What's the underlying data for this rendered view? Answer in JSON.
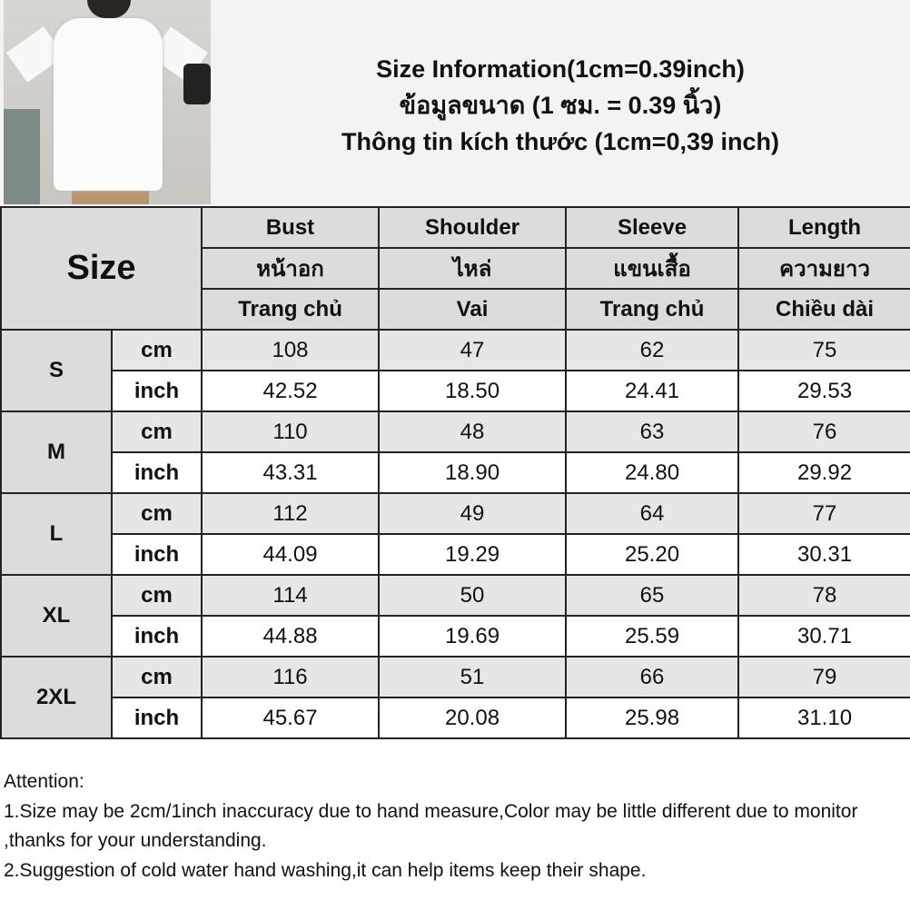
{
  "title_lines": [
    "Size Information(1cm=0.39inch)",
    "ข้อมูลขนาด (1 ซม. = 0.39 นิ้ว)",
    "Thông tin kích thước (1cm=0,39 inch)"
  ],
  "size_header": "Size",
  "columns": [
    {
      "en": "Bust",
      "th": "หน้าอก",
      "vi": "Trang chủ"
    },
    {
      "en": "Shoulder",
      "th": "ไหล่",
      "vi": "Vai"
    },
    {
      "en": "Sleeve",
      "th": "แขนเสื้อ",
      "vi": "Trang chủ"
    },
    {
      "en": "Length",
      "th": "ความยาว",
      "vi": "Chiều dài"
    }
  ],
  "rows": [
    {
      "size": "S",
      "cm": [
        "108",
        "47",
        "62",
        "75"
      ],
      "inch": [
        "42.52",
        "18.50",
        "24.41",
        "29.53"
      ]
    },
    {
      "size": "M",
      "cm": [
        "110",
        "48",
        "63",
        "76"
      ],
      "inch": [
        "43.31",
        "18.90",
        "24.80",
        "29.92"
      ]
    },
    {
      "size": "L",
      "cm": [
        "112",
        "49",
        "64",
        "77"
      ],
      "inch": [
        "44.09",
        "19.29",
        "25.20",
        "30.31"
      ]
    },
    {
      "size": "XL",
      "cm": [
        "114",
        "50",
        "65",
        "78"
      ],
      "inch": [
        "44.88",
        "19.69",
        "25.59",
        "30.71"
      ]
    },
    {
      "size": "2XL",
      "cm": [
        "116",
        "51",
        "66",
        "79"
      ],
      "inch": [
        "45.67",
        "20.08",
        "25.98",
        "31.10"
      ]
    }
  ],
  "units": {
    "cm": "cm",
    "inch": "inch"
  },
  "attention": [
    "Attention:",
    "1.Size may be 2cm/1inch inaccuracy due to hand measure,Color may be little different due to monitor ,thanks for your understanding.",
    "2.Suggestion of cold water hand washing,it can help items keep their shape."
  ]
}
